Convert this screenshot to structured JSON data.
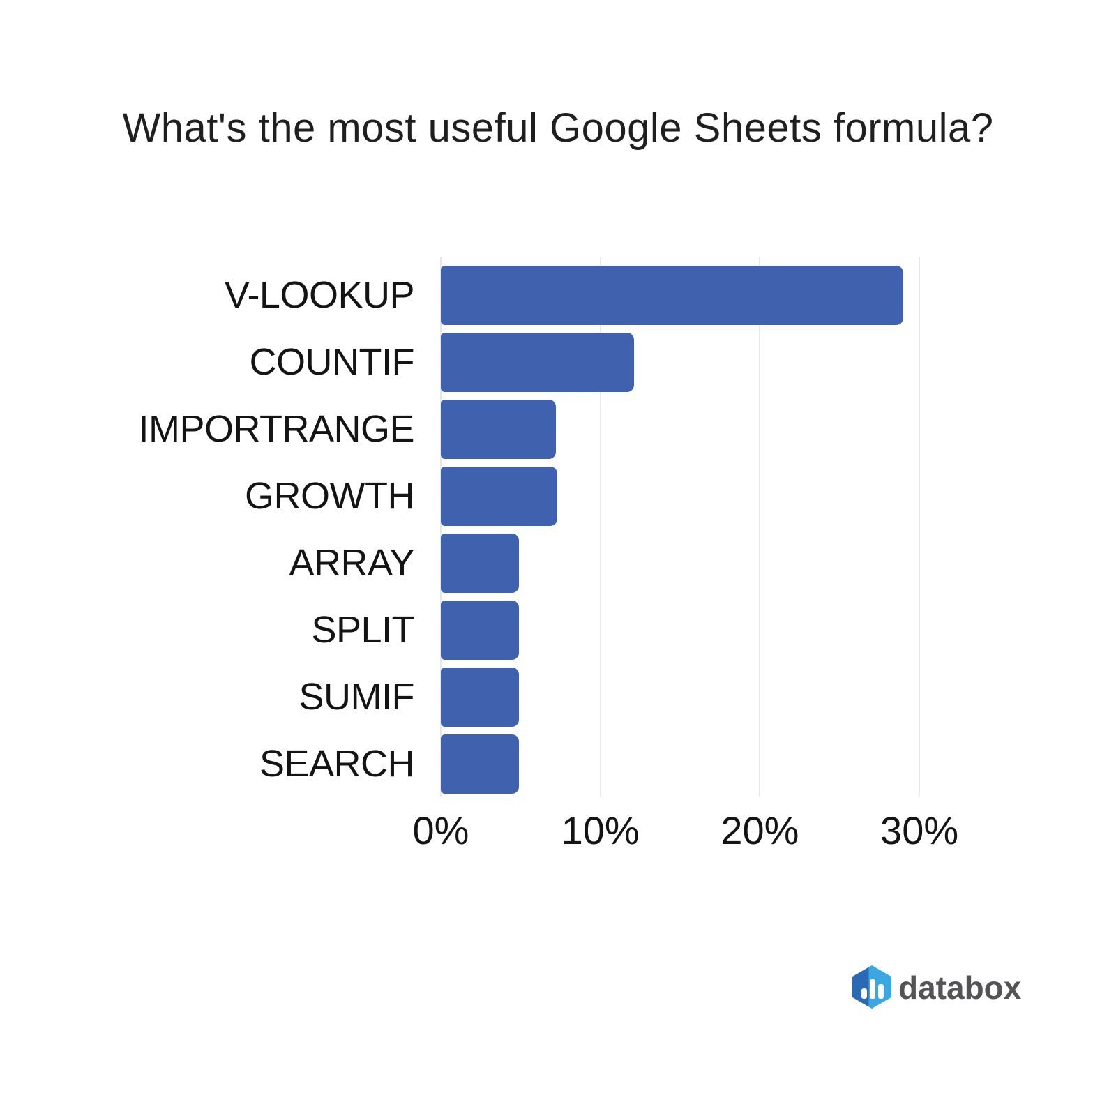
{
  "title": "What's the most useful Google Sheets formula?",
  "chart_data": {
    "type": "bar",
    "orientation": "horizontal",
    "title": "What's the most useful Google Sheets formula?",
    "categories": [
      "V-LOOKUP",
      "COUNTIF",
      "IMPORTRANGE",
      "GROWTH",
      "ARRAY",
      "SPLIT",
      "SUMIF",
      "SEARCH"
    ],
    "values": [
      29.0,
      12.1,
      7.2,
      7.3,
      4.9,
      4.9,
      4.9,
      4.9
    ],
    "unit": "%",
    "xlabel": "",
    "ylabel": "",
    "x_ticks": [
      "0%",
      "10%",
      "20%",
      "30%"
    ],
    "x_tick_values": [
      0,
      10,
      20,
      30
    ],
    "xlim": [
      0,
      33.6
    ],
    "grid": "vertical-gridlines-on",
    "legend": "none",
    "bar_color": "#4061ad"
  },
  "colors": {
    "bar": "#4061ad",
    "gridline": "#e8e8e8",
    "title_text": "#1f1f1f",
    "axis_text": "#141414",
    "logo_text": "#545456",
    "logo_hex_dark": "#2a69b4",
    "logo_hex_light": "#3aa7e0"
  },
  "branding": {
    "logo_text": "databox"
  }
}
